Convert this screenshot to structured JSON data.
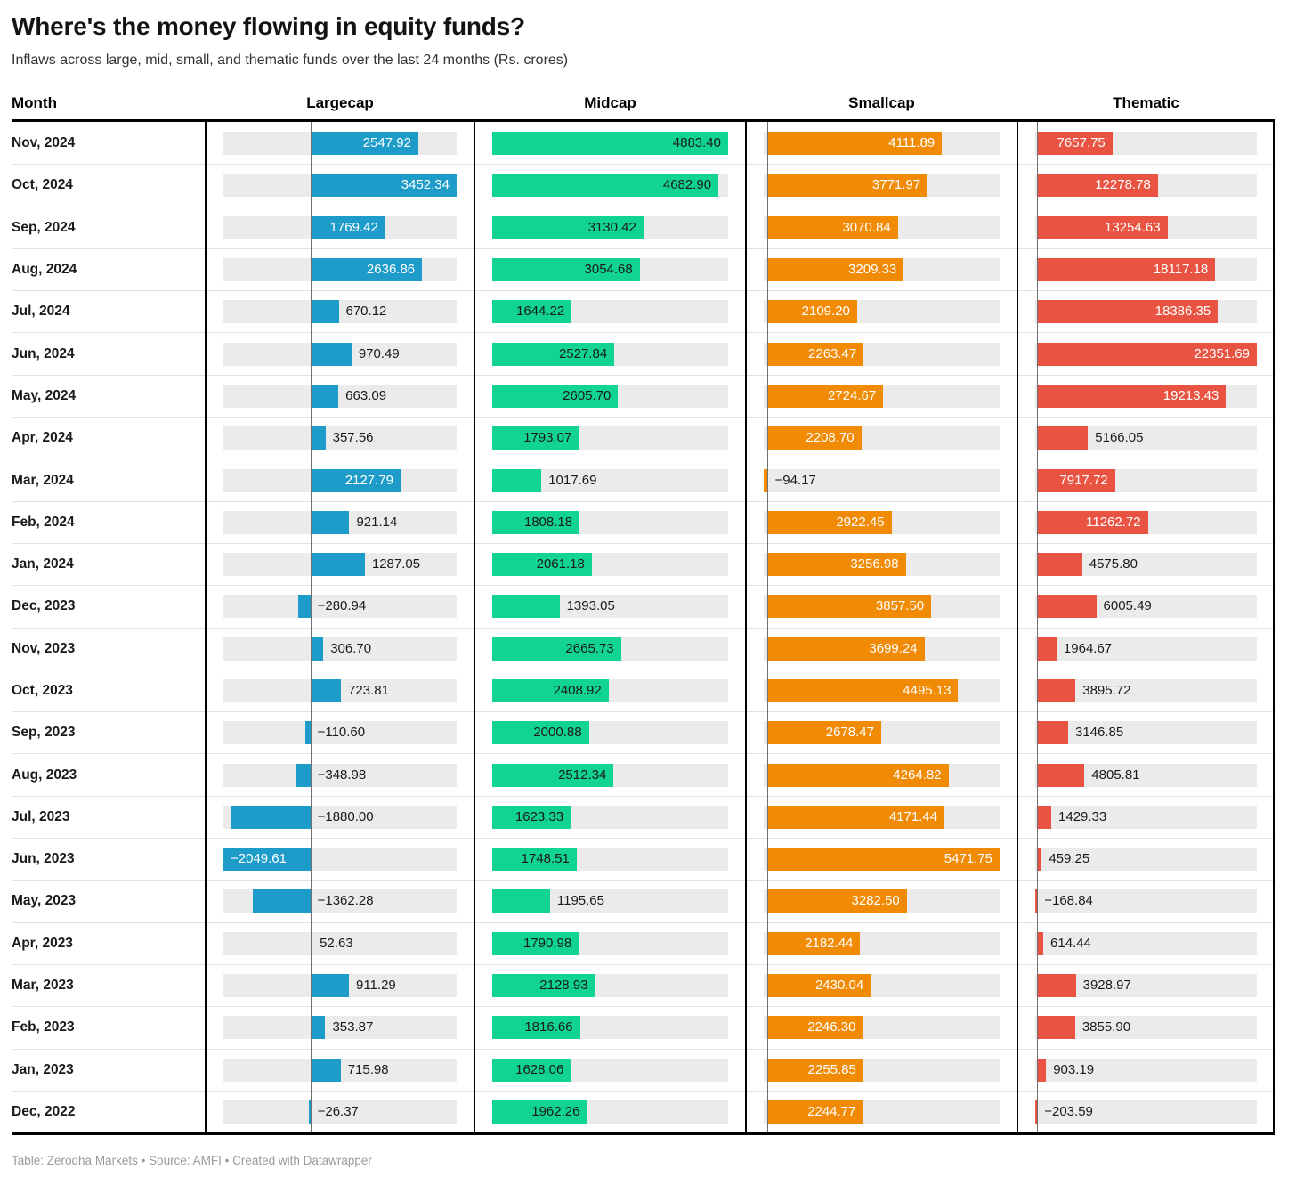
{
  "title": "Where's the money flowing in equity funds?",
  "subtitle": "Inflaws across large, mid, small, and thematic funds over the last 24 months (Rs. crores)",
  "columns": {
    "month_label": "Month"
  },
  "footer": {
    "prefix": "Table: ",
    "table_source": "Zerodha Markets",
    "sep1": " • Source: ",
    "data_source": "AMFI",
    "sep2": " • Created with ",
    "tool": "Datawrapper"
  },
  "chart_data": {
    "type": "bar",
    "title": "Where's the money flowing in equity funds?",
    "subtitle": "Inflaws across large, mid, small, and thematic funds over the last 24 months (Rs. crores)",
    "unit": "Rs. crores",
    "layout_hint": "horizontal bar table, each column scaled independently from min(0,min) to max, gray track background",
    "track_color": "#ebebeb",
    "categories": [
      "Nov, 2024",
      "Oct, 2024",
      "Sep, 2024",
      "Aug, 2024",
      "Jul, 2024",
      "Jun, 2024",
      "May, 2024",
      "Apr, 2024",
      "Mar, 2024",
      "Feb, 2024",
      "Jan, 2024",
      "Dec, 2023",
      "Nov, 2023",
      "Oct, 2023",
      "Sep, 2023",
      "Aug, 2023",
      "Jul, 2023",
      "Jun, 2023",
      "May, 2023",
      "Apr, 2023",
      "Mar, 2023",
      "Feb, 2023",
      "Jan, 2023",
      "Dec, 2022"
    ],
    "series": [
      {
        "name": "Largecap",
        "color": "#1d9cc9",
        "label_inside_color": "#ffffff",
        "values": [
          2547.92,
          3452.34,
          1769.42,
          2636.86,
          670.12,
          970.49,
          663.09,
          357.56,
          2127.79,
          921.14,
          1287.05,
          -280.94,
          306.7,
          723.81,
          -110.6,
          -348.98,
          -1880.0,
          -2049.61,
          -1362.28,
          52.63,
          911.29,
          353.87,
          715.98,
          -26.37
        ]
      },
      {
        "name": "Midcap",
        "color": "#10d394",
        "label_inside_color": "#1a1a1a",
        "values": [
          4883.4,
          4682.9,
          3130.42,
          3054.68,
          1644.22,
          2527.84,
          2605.7,
          1793.07,
          1017.69,
          1808.18,
          2061.18,
          1393.05,
          2665.73,
          2408.92,
          2000.88,
          2512.34,
          1623.33,
          1748.51,
          1195.65,
          1790.98,
          2128.93,
          1816.66,
          1628.06,
          1962.26
        ]
      },
      {
        "name": "Smallcap",
        "color": "#f18b05",
        "label_inside_color": "#ffffff",
        "values": [
          4111.89,
          3771.97,
          3070.84,
          3209.33,
          2109.2,
          2263.47,
          2724.67,
          2208.7,
          -94.17,
          2922.45,
          3256.98,
          3857.5,
          3699.24,
          4495.13,
          2678.47,
          4264.82,
          4171.44,
          5471.75,
          3282.5,
          2182.44,
          2430.04,
          2246.3,
          2255.85,
          2244.77
        ]
      },
      {
        "name": "Thematic",
        "color": "#e95442",
        "label_inside_color": "#ffffff",
        "values": [
          7657.75,
          12278.78,
          13254.63,
          18117.18,
          18386.35,
          22351.69,
          19213.43,
          5166.05,
          7917.72,
          11262.72,
          4575.8,
          6005.49,
          1964.67,
          3895.72,
          3146.85,
          4805.81,
          1429.33,
          459.25,
          -168.84,
          614.44,
          3928.97,
          3855.9,
          903.19,
          -203.59
        ]
      }
    ]
  }
}
